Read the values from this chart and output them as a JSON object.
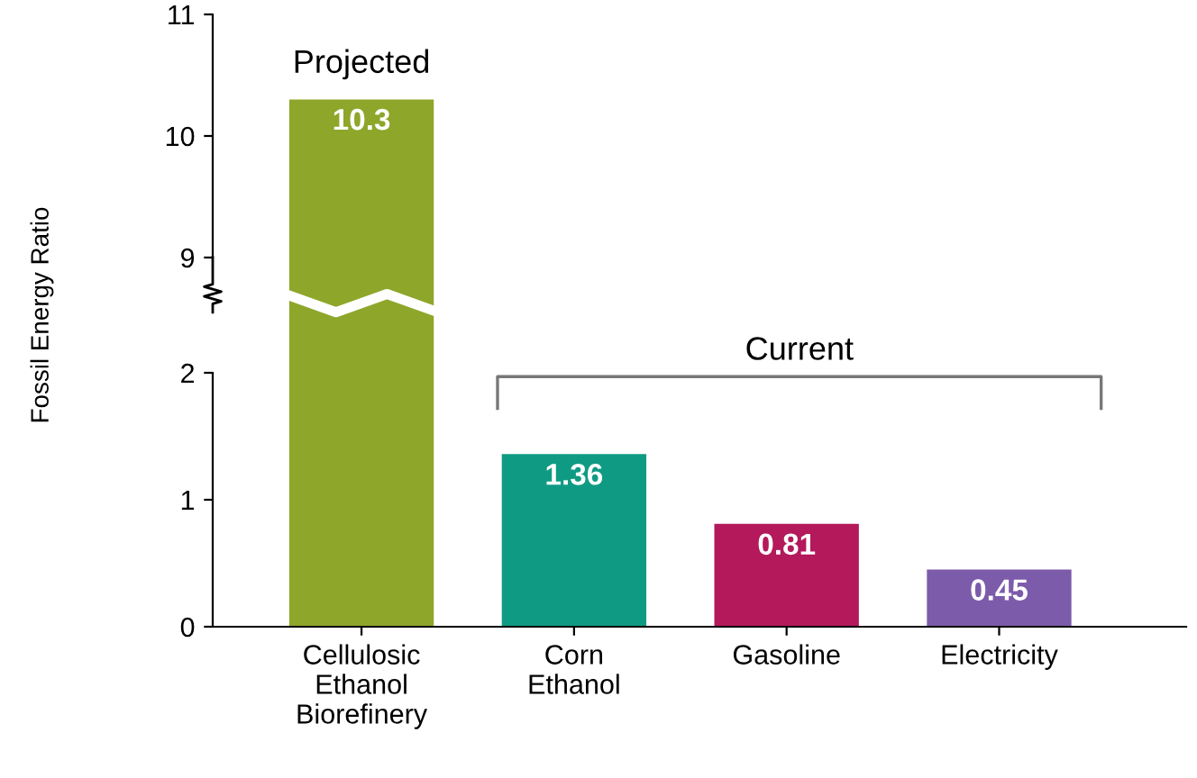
{
  "chart_data": [
    {
      "type": "bar",
      "categories": [
        null,
        null,
        null,
        null
      ],
      "colors": [
        "#8ea62a",
        "#0f9b83",
        "#b3195b",
        "#7c5bab"
      ],
      "values": [
        10.3,
        null,
        null,
        null
      ],
      "ylim": [
        9,
        11
      ],
      "yticks": [
        9,
        10,
        11
      ],
      "tick_labels": "y",
      "data_labels": true,
      "ylabel": "Fossil Energy Ratio",
      "annotations": [
        {
          "text": "Projected",
          "y": 10.3
        }
      ],
      "grid": false
    },
    {
      "type": "bar",
      "categories": [
        "Cellulosic\nEthanol\nBiorefinery",
        "Corn\nEthanol",
        "Gasoline",
        "Electricity"
      ],
      "colors": [
        "#8ea62a",
        "#0f9b83",
        "#b3195b",
        "#7c5bab"
      ],
      "values": [
        null,
        1.36,
        0.81,
        0.45
      ],
      "ylim": [
        0,
        2
      ],
      "yticks": [
        0,
        1,
        2
      ],
      "value_labels": [
        null,
        "1.36",
        "0.81",
        "0.45"
      ],
      "annotations": [
        "Current"
      ],
      "grid": false
    }
  ]
}
